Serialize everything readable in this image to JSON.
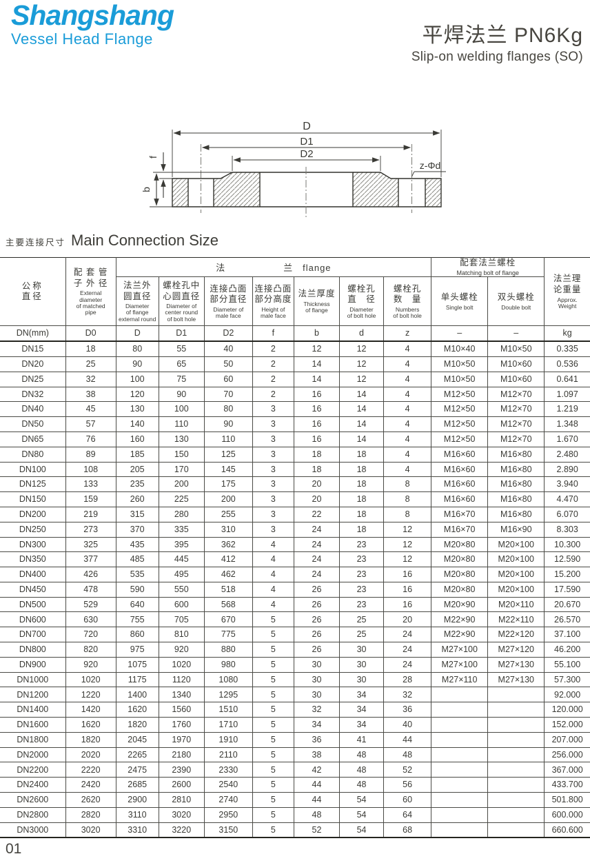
{
  "logo": {
    "name": "Shangshang",
    "tagline": "Vessel Head Flange"
  },
  "header": {
    "title_cn": "平焊法兰 PN6Kg",
    "title_en": "Slip-on welding flanges (SO)"
  },
  "drawing": {
    "labels": {
      "d": "D",
      "d1": "D1",
      "d2": "D2",
      "f": "f",
      "b": "b",
      "bolt": "z-Φd"
    }
  },
  "section": {
    "title_cn": "主要连接尺寸",
    "title_en": "Main Connection Size"
  },
  "table": {
    "groups": {
      "flange": "法　　　　　　兰   flange",
      "bolt_cn": "配套法兰螺栓",
      "bolt_en": "Matching bolt of flange"
    },
    "headers": {
      "nominal": {
        "cn": "公称\n直径",
        "en": ""
      },
      "pipe": {
        "cn": "配 套 管\n子 外 径",
        "en": "External\ndiameter\nof matched\npipe"
      },
      "flange_od": {
        "cn": "法兰外\n圆直径",
        "en": "Diameter\nof flange\nexternal round"
      },
      "bolt_circle": {
        "cn": "螺栓孔中\n心圆直径",
        "en": "Diameter of\ncenter round\nof bolt hole"
      },
      "male_face_d": {
        "cn": "连接凸面\n部分直径",
        "en": "Diameter of\nmale face"
      },
      "male_face_h": {
        "cn": "连接凸面\n部分高度",
        "en": "Height of\nmale face"
      },
      "thickness": {
        "cn": "法兰厚度",
        "en": "Thickness\nof flange"
      },
      "bolt_hole_d": {
        "cn": "螺栓孔\n直　径",
        "en": "Diameter\nof bolt hole"
      },
      "bolt_hole_n": {
        "cn": "螺栓孔\n数　量",
        "en": "Numbers\nof bolt hole"
      },
      "single_bolt": {
        "cn": "单头螺栓",
        "en": "Single bolt"
      },
      "double_bolt": {
        "cn": "双头螺栓",
        "en": "Double bolt"
      },
      "weight": {
        "cn": "法兰理\n论重量",
        "en": "Approx.\nWeight"
      }
    },
    "symbols": [
      "DN(mm)",
      "D0",
      "D",
      "D1",
      "D2",
      "f",
      "b",
      "d",
      "z",
      "–",
      "–",
      "kg"
    ],
    "rows": [
      [
        "DN15",
        "18",
        "80",
        "55",
        "40",
        "2",
        "12",
        "12",
        "4",
        "M10×40",
        "M10×50",
        "0.335"
      ],
      [
        "DN20",
        "25",
        "90",
        "65",
        "50",
        "2",
        "14",
        "12",
        "4",
        "M10×50",
        "M10×60",
        "0.536"
      ],
      [
        "DN25",
        "32",
        "100",
        "75",
        "60",
        "2",
        "14",
        "12",
        "4",
        "M10×50",
        "M10×60",
        "0.641"
      ],
      [
        "DN32",
        "38",
        "120",
        "90",
        "70",
        "2",
        "16",
        "14",
        "4",
        "M12×50",
        "M12×70",
        "1.097"
      ],
      [
        "DN40",
        "45",
        "130",
        "100",
        "80",
        "3",
        "16",
        "14",
        "4",
        "M12×50",
        "M12×70",
        "1.219"
      ],
      [
        "DN50",
        "57",
        "140",
        "110",
        "90",
        "3",
        "16",
        "14",
        "4",
        "M12×50",
        "M12×70",
        "1.348"
      ],
      [
        "DN65",
        "76",
        "160",
        "130",
        "110",
        "3",
        "16",
        "14",
        "4",
        "M12×50",
        "M12×70",
        "1.670"
      ],
      [
        "DN80",
        "89",
        "185",
        "150",
        "125",
        "3",
        "18",
        "18",
        "4",
        "M16×60",
        "M16×80",
        "2.480"
      ],
      [
        "DN100",
        "108",
        "205",
        "170",
        "145",
        "3",
        "18",
        "18",
        "4",
        "M16×60",
        "M16×80",
        "2.890"
      ],
      [
        "DN125",
        "133",
        "235",
        "200",
        "175",
        "3",
        "20",
        "18",
        "8",
        "M16×60",
        "M16×80",
        "3.940"
      ],
      [
        "DN150",
        "159",
        "260",
        "225",
        "200",
        "3",
        "20",
        "18",
        "8",
        "M16×60",
        "M16×80",
        "4.470"
      ],
      [
        "DN200",
        "219",
        "315",
        "280",
        "255",
        "3",
        "22",
        "18",
        "8",
        "M16×70",
        "M16×80",
        "6.070"
      ],
      [
        "DN250",
        "273",
        "370",
        "335",
        "310",
        "3",
        "24",
        "18",
        "12",
        "M16×70",
        "M16×90",
        "8.303"
      ],
      [
        "DN300",
        "325",
        "435",
        "395",
        "362",
        "4",
        "24",
        "23",
        "12",
        "M20×80",
        "M20×100",
        "10.300"
      ],
      [
        "DN350",
        "377",
        "485",
        "445",
        "412",
        "4",
        "24",
        "23",
        "12",
        "M20×80",
        "M20×100",
        "12.590"
      ],
      [
        "DN400",
        "426",
        "535",
        "495",
        "462",
        "4",
        "24",
        "23",
        "16",
        "M20×80",
        "M20×100",
        "15.200"
      ],
      [
        "DN450",
        "478",
        "590",
        "550",
        "518",
        "4",
        "26",
        "23",
        "16",
        "M20×80",
        "M20×100",
        "17.590"
      ],
      [
        "DN500",
        "529",
        "640",
        "600",
        "568",
        "4",
        "26",
        "23",
        "16",
        "M20×90",
        "M20×110",
        "20.670"
      ],
      [
        "DN600",
        "630",
        "755",
        "705",
        "670",
        "5",
        "26",
        "25",
        "20",
        "M22×90",
        "M22×110",
        "26.570"
      ],
      [
        "DN700",
        "720",
        "860",
        "810",
        "775",
        "5",
        "26",
        "25",
        "24",
        "M22×90",
        "M22×120",
        "37.100"
      ],
      [
        "DN800",
        "820",
        "975",
        "920",
        "880",
        "5",
        "26",
        "30",
        "24",
        "M27×100",
        "M27×120",
        "46.200"
      ],
      [
        "DN900",
        "920",
        "1075",
        "1020",
        "980",
        "5",
        "30",
        "30",
        "24",
        "M27×100",
        "M27×130",
        "55.100"
      ],
      [
        "DN1000",
        "1020",
        "1175",
        "1120",
        "1080",
        "5",
        "30",
        "30",
        "28",
        "M27×110",
        "M27×130",
        "57.300"
      ],
      [
        "DN1200",
        "1220",
        "1400",
        "1340",
        "1295",
        "5",
        "30",
        "34",
        "32",
        "",
        "",
        "92.000"
      ],
      [
        "DN1400",
        "1420",
        "1620",
        "1560",
        "1510",
        "5",
        "32",
        "34",
        "36",
        "",
        "",
        "120.000"
      ],
      [
        "DN1600",
        "1620",
        "1820",
        "1760",
        "1710",
        "5",
        "34",
        "34",
        "40",
        "",
        "",
        "152.000"
      ],
      [
        "DN1800",
        "1820",
        "2045",
        "1970",
        "1910",
        "5",
        "36",
        "41",
        "44",
        "",
        "",
        "207.000"
      ],
      [
        "DN2000",
        "2020",
        "2265",
        "2180",
        "2110",
        "5",
        "38",
        "48",
        "48",
        "",
        "",
        "256.000"
      ],
      [
        "DN2200",
        "2220",
        "2475",
        "2390",
        "2330",
        "5",
        "42",
        "48",
        "52",
        "",
        "",
        "367.000"
      ],
      [
        "DN2400",
        "2420",
        "2685",
        "2600",
        "2540",
        "5",
        "44",
        "48",
        "56",
        "",
        "",
        "433.700"
      ],
      [
        "DN2600",
        "2620",
        "2900",
        "2810",
        "2740",
        "5",
        "44",
        "54",
        "60",
        "",
        "",
        "501.800"
      ],
      [
        "DN2800",
        "2820",
        "3110",
        "3020",
        "2950",
        "5",
        "48",
        "54",
        "64",
        "",
        "",
        "600.000"
      ],
      [
        "DN3000",
        "3020",
        "3310",
        "3220",
        "3150",
        "5",
        "52",
        "54",
        "68",
        "",
        "",
        "660.600"
      ]
    ]
  },
  "page_number": "01"
}
